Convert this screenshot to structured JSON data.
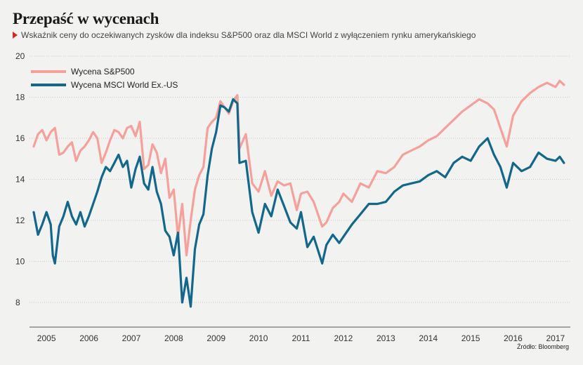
{
  "title": "Przepaść w wycenach",
  "subtitle": "Wskaźnik ceny do oczekiwanych zysków dla indeksu S&P500 oraz dla MSCI World z wyłączeniem rynku amerykańskiego",
  "source": "Źródło: Bloomberg",
  "colors": {
    "sp500": "#f4a09b",
    "msci": "#13678a",
    "accent": "#d9261c",
    "grid": "#c8c8c8"
  },
  "chart_data": {
    "type": "line",
    "title": "Przepaść w wycenach",
    "xlabel": "",
    "ylabel": "",
    "xlim": [
      2004.6,
      2017.35
    ],
    "ylim": [
      6.8,
      20
    ],
    "y_ticks": [
      8,
      10,
      12,
      14,
      16,
      18,
      20
    ],
    "x_ticks": [
      2005,
      2006,
      2007,
      2008,
      2009,
      2010,
      2011,
      2012,
      2013,
      2014,
      2015,
      2016,
      2017
    ],
    "grid": "horizontal",
    "legend_position": "top-left",
    "series": [
      {
        "name": "Wycena S&P500",
        "color": "#f4a09b",
        "x": [
          2004.7,
          2004.8,
          2004.9,
          2005.0,
          2005.1,
          2005.2,
          2005.3,
          2005.4,
          2005.5,
          2005.6,
          2005.7,
          2005.8,
          2005.9,
          2006.0,
          2006.1,
          2006.2,
          2006.3,
          2006.4,
          2006.5,
          2006.6,
          2006.7,
          2006.8,
          2006.9,
          2007.0,
          2007.1,
          2007.2,
          2007.3,
          2007.4,
          2007.5,
          2007.6,
          2007.7,
          2007.8,
          2007.9,
          2008.0,
          2008.1,
          2008.2,
          2008.3,
          2008.4,
          2008.5,
          2008.6,
          2008.7,
          2008.8,
          2008.9,
          2009.0,
          2009.1,
          2009.2,
          2009.3,
          2009.4,
          2009.5,
          2009.55,
          2009.7,
          2009.85,
          2010.0,
          2010.15,
          2010.3,
          2010.45,
          2010.6,
          2010.75,
          2010.9,
          2011.0,
          2011.15,
          2011.3,
          2011.5,
          2011.6,
          2011.75,
          2011.9,
          2012.0,
          2012.2,
          2012.4,
          2012.6,
          2012.8,
          2013.0,
          2013.2,
          2013.4,
          2013.6,
          2013.8,
          2014.0,
          2014.2,
          2014.4,
          2014.6,
          2014.8,
          2015.0,
          2015.2,
          2015.4,
          2015.55,
          2015.7,
          2015.85,
          2016.0,
          2016.2,
          2016.4,
          2016.6,
          2016.8,
          2017.0,
          2017.1,
          2017.2
        ],
        "values": [
          15.6,
          16.2,
          16.4,
          15.9,
          16.3,
          16.5,
          15.2,
          15.3,
          15.6,
          15.8,
          14.9,
          15.4,
          15.6,
          15.9,
          16.3,
          16.0,
          14.8,
          15.3,
          15.9,
          16.4,
          16.3,
          16.0,
          16.5,
          16.6,
          16.1,
          16.8,
          14.5,
          14.7,
          15.7,
          15.3,
          14.3,
          15.0,
          13.1,
          13.5,
          11.2,
          12.8,
          10.3,
          12.0,
          13.5,
          14.2,
          14.6,
          16.5,
          16.8,
          17.0,
          17.8,
          17.5,
          17.2,
          17.8,
          18.1,
          15.5,
          16.2,
          13.8,
          13.4,
          14.4,
          13.2,
          13.9,
          13.7,
          13.8,
          12.5,
          13.3,
          13.4,
          12.9,
          11.7,
          11.9,
          12.6,
          12.9,
          13.3,
          12.9,
          13.8,
          13.6,
          14.4,
          14.3,
          14.6,
          15.2,
          15.4,
          15.6,
          15.9,
          16.1,
          16.5,
          16.9,
          17.3,
          17.6,
          17.9,
          17.7,
          17.4,
          16.5,
          15.6,
          17.1,
          17.8,
          18.2,
          18.5,
          18.7,
          18.5,
          18.8,
          18.6
        ]
      },
      {
        "name": "Wycena MSCI World Ex.-US",
        "color": "#13678a",
        "x": [
          2004.7,
          2004.8,
          2004.9,
          2005.0,
          2005.1,
          2005.15,
          2005.2,
          2005.3,
          2005.4,
          2005.5,
          2005.6,
          2005.7,
          2005.8,
          2005.9,
          2006.0,
          2006.1,
          2006.2,
          2006.3,
          2006.4,
          2006.5,
          2006.6,
          2006.7,
          2006.8,
          2006.9,
          2007.0,
          2007.1,
          2007.2,
          2007.3,
          2007.4,
          2007.5,
          2007.6,
          2007.7,
          2007.8,
          2007.9,
          2008.0,
          2008.1,
          2008.2,
          2008.3,
          2008.4,
          2008.5,
          2008.6,
          2008.7,
          2008.8,
          2008.9,
          2009.0,
          2009.1,
          2009.2,
          2009.3,
          2009.4,
          2009.5,
          2009.55,
          2009.7,
          2009.85,
          2010.0,
          2010.15,
          2010.3,
          2010.45,
          2010.6,
          2010.75,
          2010.9,
          2011.0,
          2011.15,
          2011.3,
          2011.5,
          2011.6,
          2011.75,
          2011.9,
          2012.0,
          2012.2,
          2012.4,
          2012.6,
          2012.8,
          2013.0,
          2013.2,
          2013.4,
          2013.6,
          2013.8,
          2014.0,
          2014.2,
          2014.4,
          2014.6,
          2014.8,
          2015.0,
          2015.2,
          2015.4,
          2015.55,
          2015.7,
          2015.85,
          2016.0,
          2016.2,
          2016.4,
          2016.6,
          2016.8,
          2017.0,
          2017.1,
          2017.2
        ],
        "values": [
          12.4,
          11.3,
          11.8,
          12.4,
          11.8,
          10.3,
          9.9,
          11.7,
          12.2,
          12.9,
          12.2,
          11.8,
          12.4,
          11.7,
          12.2,
          12.8,
          13.4,
          14.1,
          14.6,
          14.4,
          14.8,
          15.2,
          14.6,
          14.9,
          13.6,
          14.5,
          15.1,
          13.8,
          13.5,
          14.6,
          13.4,
          12.8,
          11.5,
          11.2,
          10.3,
          11.4,
          8.0,
          9.2,
          7.8,
          10.6,
          11.8,
          12.3,
          14.2,
          15.5,
          16.3,
          17.6,
          17.5,
          17.3,
          17.9,
          17.7,
          14.8,
          14.9,
          12.4,
          11.4,
          12.8,
          12.2,
          13.5,
          12.7,
          11.9,
          11.6,
          12.4,
          10.7,
          11.2,
          9.9,
          10.8,
          11.3,
          10.9,
          11.2,
          11.8,
          12.3,
          12.8,
          12.8,
          12.9,
          13.4,
          13.7,
          13.8,
          13.9,
          14.2,
          14.4,
          14.1,
          14.8,
          15.1,
          14.9,
          15.6,
          16.0,
          15.2,
          14.6,
          13.6,
          14.8,
          14.4,
          14.6,
          15.3,
          15.0,
          14.9,
          15.1,
          14.8
        ]
      }
    ]
  }
}
